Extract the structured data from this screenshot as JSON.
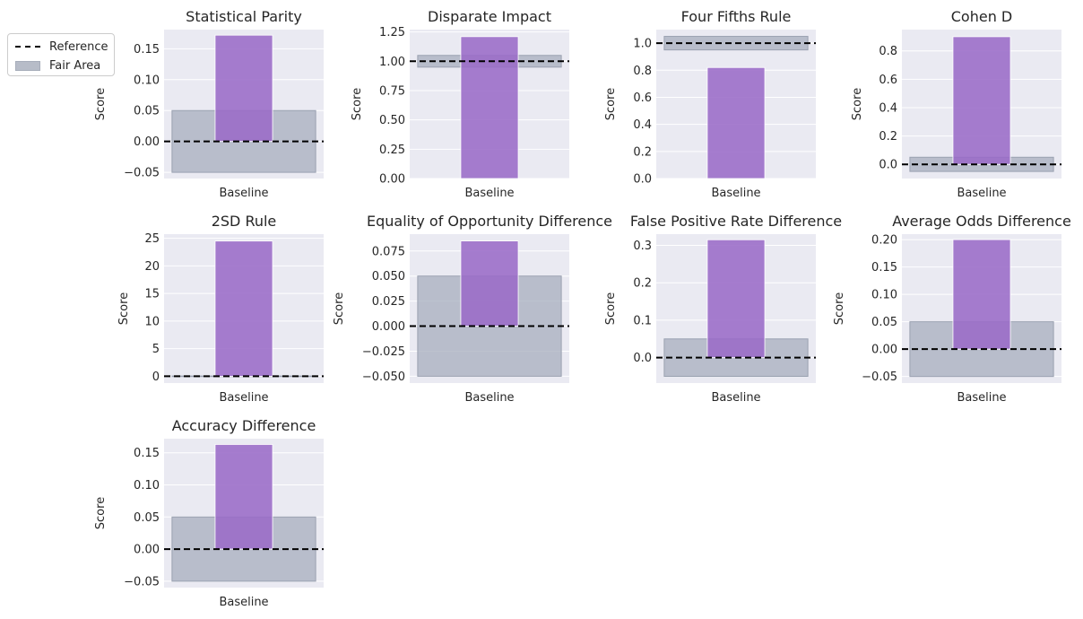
{
  "legend": {
    "reference_label": "Reference",
    "fair_area_label": "Fair Area"
  },
  "colors": {
    "bar": "#9a6bc7",
    "fair_area": "#a7adbd",
    "axes_background": "#eaeaf2",
    "reference_line": "#000000"
  },
  "chart_data": [
    {
      "type": "bar",
      "title": "Statistical Parity",
      "ylabel": "Score",
      "categories": [
        "Baseline"
      ],
      "values": [
        0.172
      ],
      "reference": 0,
      "fair_area": [
        -0.05,
        0.05
      ],
      "ylim": [
        -0.06,
        0.181
      ],
      "yticks": [
        -0.05,
        0,
        0.05,
        0.1,
        0.15
      ],
      "yticklabels": [
        "−0.05",
        "0.00",
        "0.05",
        "0.10",
        "0.15"
      ]
    },
    {
      "type": "bar",
      "title": "Disparate Impact",
      "ylabel": "Score",
      "categories": [
        "Baseline"
      ],
      "values": [
        1.21
      ],
      "reference": 1,
      "fair_area": [
        0.95,
        1.05
      ],
      "ylim": [
        0,
        1.27
      ],
      "yticks": [
        0,
        0.25,
        0.5,
        0.75,
        1,
        1.25
      ],
      "yticklabels": [
        "0.00",
        "0.25",
        "0.50",
        "0.75",
        "1.00",
        "1.25"
      ]
    },
    {
      "type": "bar",
      "title": "Four Fifths Rule",
      "ylabel": "Score",
      "categories": [
        "Baseline"
      ],
      "values": [
        0.82
      ],
      "reference": 1,
      "fair_area": [
        0.95,
        1.05
      ],
      "ylim": [
        0,
        1.1
      ],
      "yticks": [
        0,
        0.2,
        0.4,
        0.6,
        0.8,
        1
      ],
      "yticklabels": [
        "0.0",
        "0.2",
        "0.4",
        "0.6",
        "0.8",
        "1.0"
      ]
    },
    {
      "type": "bar",
      "title": "Cohen D",
      "ylabel": "Score",
      "categories": [
        "Baseline"
      ],
      "values": [
        0.9
      ],
      "reference": 0,
      "fair_area": [
        -0.05,
        0.05
      ],
      "ylim": [
        -0.1,
        0.95
      ],
      "yticks": [
        0,
        0.2,
        0.4,
        0.6,
        0.8
      ],
      "yticklabels": [
        "0.0",
        "0.2",
        "0.4",
        "0.6",
        "0.8"
      ]
    },
    {
      "type": "bar",
      "title": "2SD Rule",
      "ylabel": "Score",
      "categories": [
        "Baseline"
      ],
      "values": [
        24.5
      ],
      "reference": 0,
      "fair_area": [
        -0.05,
        0.05
      ],
      "ylim": [
        -1.23,
        25.75
      ],
      "yticks": [
        0,
        5,
        10,
        15,
        20,
        25
      ],
      "yticklabels": [
        "0",
        "5",
        "10",
        "15",
        "20",
        "25"
      ]
    },
    {
      "type": "bar",
      "title": "Equality of Opportunity Difference",
      "ylabel": "Score",
      "categories": [
        "Baseline"
      ],
      "values": [
        0.085
      ],
      "reference": 0,
      "fair_area": [
        -0.05,
        0.05
      ],
      "ylim": [
        -0.0568,
        0.0918
      ],
      "yticks": [
        -0.05,
        -0.025,
        0,
        0.025,
        0.05,
        0.075
      ],
      "yticklabels": [
        "−0.050",
        "−0.025",
        "0.000",
        "0.025",
        "0.050",
        "0.075"
      ]
    },
    {
      "type": "bar",
      "title": "False Positive Rate Difference",
      "ylabel": "Score",
      "categories": [
        "Baseline"
      ],
      "values": [
        0.315
      ],
      "reference": 0,
      "fair_area": [
        -0.05,
        0.05
      ],
      "ylim": [
        -0.068,
        0.33
      ],
      "yticks": [
        0,
        0.1,
        0.2,
        0.3
      ],
      "yticklabels": [
        "0.0",
        "0.1",
        "0.2",
        "0.3"
      ]
    },
    {
      "type": "bar",
      "title": "Average Odds Difference",
      "ylabel": "Score",
      "categories": [
        "Baseline"
      ],
      "values": [
        0.2
      ],
      "reference": 0,
      "fair_area": [
        -0.05,
        0.05
      ],
      "ylim": [
        -0.062,
        0.21
      ],
      "yticks": [
        -0.05,
        0,
        0.05,
        0.1,
        0.15,
        0.2
      ],
      "yticklabels": [
        "−0.05",
        "0.00",
        "0.05",
        "0.10",
        "0.15",
        "0.20"
      ]
    },
    {
      "type": "bar",
      "title": "Accuracy Difference",
      "ylabel": "Score",
      "categories": [
        "Baseline"
      ],
      "values": [
        0.163
      ],
      "reference": 0,
      "fair_area": [
        -0.05,
        0.05
      ],
      "ylim": [
        -0.06,
        0.172
      ],
      "yticks": [
        -0.05,
        0,
        0.05,
        0.1,
        0.15
      ],
      "yticklabels": [
        "−0.05",
        "0.00",
        "0.05",
        "0.10",
        "0.15"
      ]
    }
  ]
}
